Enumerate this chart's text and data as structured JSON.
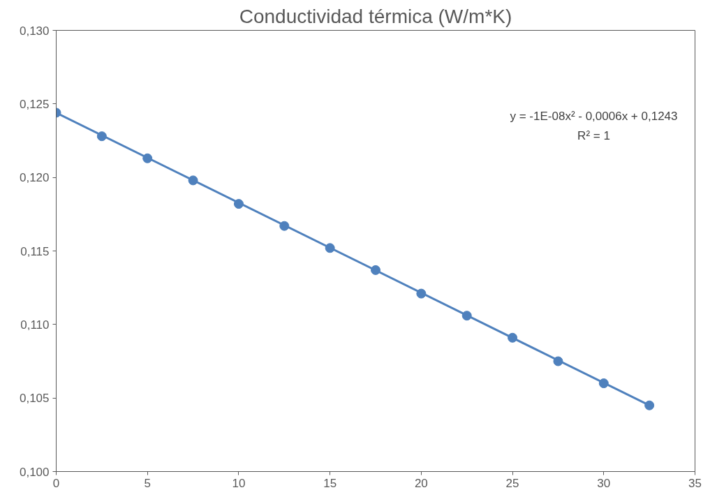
{
  "chart_data": {
    "type": "scatter",
    "title": "Conductividad térmica (W/m*K)",
    "x": [
      0,
      2.5,
      5,
      7.5,
      10,
      12.5,
      15,
      17.5,
      20,
      22.5,
      25,
      27.5,
      30,
      32.5
    ],
    "series": [
      {
        "marker": "circle",
        "color": "#4f81bd",
        "values": [
          0.1244,
          0.1228,
          0.1213,
          0.1198,
          0.1182,
          0.1167,
          0.1152,
          0.1137,
          0.1121,
          0.1106,
          0.1091,
          0.1075,
          0.106,
          0.1045
        ]
      },
      {
        "type": "line",
        "marker": "none",
        "color": "#4f81bd",
        "x": [
          0,
          32.5
        ],
        "values": [
          0.1244,
          0.1045
        ]
      }
    ],
    "xlim": [
      0,
      35
    ],
    "xticks": [
      0,
      5,
      10,
      15,
      20,
      25,
      30,
      35
    ],
    "ylim": [
      0.1,
      0.13
    ],
    "yticks": [
      {
        "value": 0.1,
        "label": "0,100"
      },
      {
        "value": 0.105,
        "label": "0,105"
      },
      {
        "value": 0.11,
        "label": "0,110"
      },
      {
        "value": 0.115,
        "label": "0,115"
      },
      {
        "value": 0.12,
        "label": "0,120"
      },
      {
        "value": 0.125,
        "label": "0,125"
      },
      {
        "value": 0.13,
        "label": "0,130"
      }
    ],
    "annotations": [
      "y = -1E-08x² - 0,0006x + 0,1243",
      "R² = 1"
    ],
    "grid": false,
    "line_style": "solid"
  }
}
